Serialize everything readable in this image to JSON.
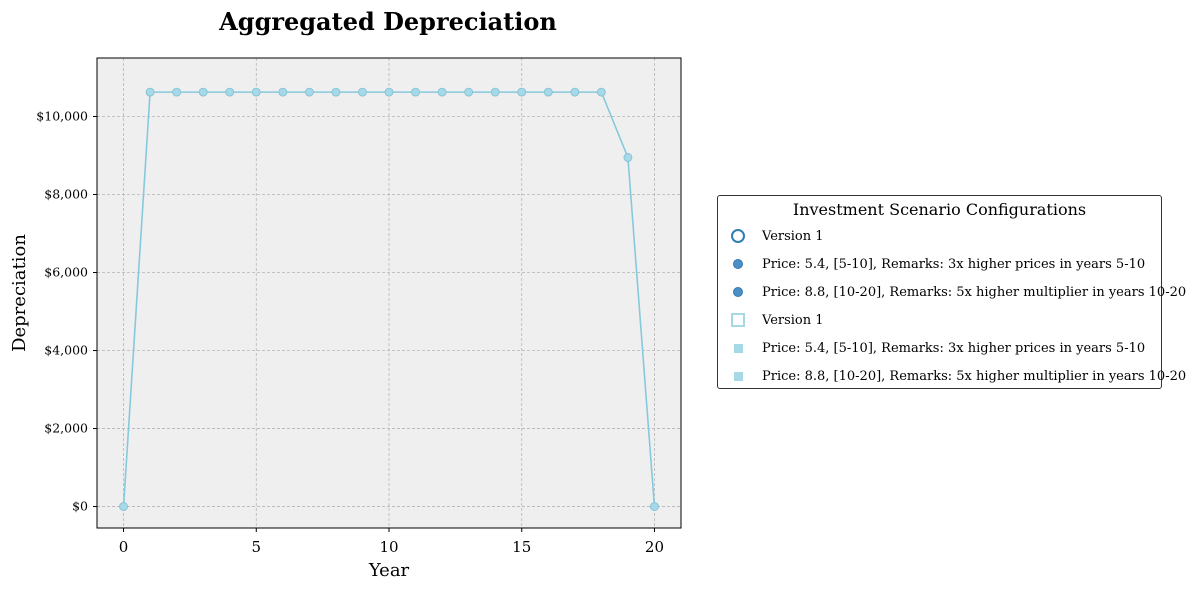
{
  "chart_data": {
    "type": "line",
    "title": "Aggregated Depreciation",
    "xlabel": "Year",
    "ylabel": "Depreciation",
    "x": [
      0,
      1,
      2,
      3,
      4,
      5,
      6,
      7,
      8,
      9,
      10,
      11,
      12,
      13,
      14,
      15,
      16,
      17,
      18,
      19,
      20
    ],
    "series": [
      {
        "values": [
          0,
          10625,
          10625,
          10625,
          10625,
          10625,
          10625,
          10625,
          10625,
          10625,
          10625,
          10625,
          10625,
          10625,
          10625,
          10625,
          10625,
          10625,
          10625,
          8950,
          0
        ],
        "color": "#87c9dc",
        "marker_fill": "#a6d9e6",
        "marker_edge": "#7fbfd6"
      }
    ],
    "xlim": [
      -1,
      21
    ],
    "ylim": [
      -550,
      11500
    ],
    "xticks": [
      0,
      5,
      10,
      15,
      20
    ],
    "yticks": [
      0,
      2000,
      4000,
      6000,
      8000,
      10000
    ],
    "ytick_labels": [
      "$0",
      "$2,000",
      "$4,000",
      "$6,000",
      "$8,000",
      "$10,000"
    ],
    "grid": true,
    "plot_background": "#efefef",
    "legend": {
      "placement": "outside-right",
      "title": "Investment Scenario Configurations",
      "entries": [
        {
          "label": "Version 1",
          "marker": "open-circle"
        },
        {
          "label": "Price: 5.4, [5-10], Remarks: 3x higher prices in years 5-10",
          "marker": "filled-circle"
        },
        {
          "label": "Price: 8.8, [10-20], Remarks: 5x higher multiplier in years 10-20",
          "marker": "filled-circle"
        },
        {
          "label": "Version 1",
          "marker": "open-square"
        },
        {
          "label": "Price: 5.4, [5-10], Remarks: 3x higher prices in years 5-10",
          "marker": "filled-square"
        },
        {
          "label": "Price: 8.8, [10-20], Remarks: 5x higher multiplier in years 10-20",
          "marker": "filled-square"
        }
      ]
    }
  }
}
